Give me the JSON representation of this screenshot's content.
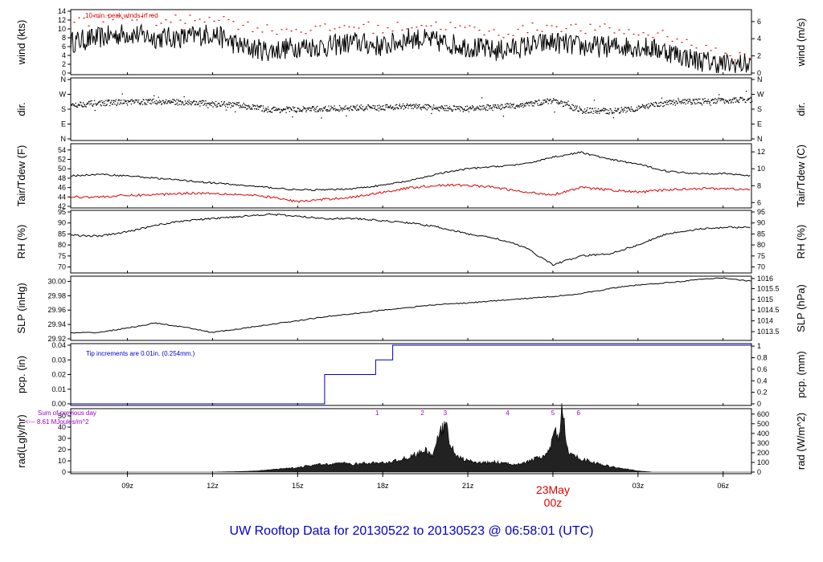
{
  "title": "UW Rooftop Data for 20130522  to  20130523 @ 06:58:01  (UTC)",
  "colors": {
    "axis": "#000000",
    "series": "#000000",
    "dew": "#dd0000",
    "gust": "#dd0000",
    "precip": "#0000cc",
    "day": "#dd0000",
    "annotation_purple": "#9900cc",
    "title": "#0000cc"
  },
  "x_axis": {
    "tick_labels": [
      "09z",
      "12z",
      "15z",
      "18z",
      "21z",
      "00z",
      "03z",
      "06z"
    ],
    "tick_hours": [
      9,
      12,
      15,
      18,
      21,
      24,
      27,
      30
    ],
    "range_hours": [
      7.0,
      31.0
    ],
    "day_label": "23May",
    "day_tick_label": "00z"
  },
  "chart_data": [
    {
      "type": "line",
      "panel": "wind",
      "ylabel_left": "wind (kts)",
      "ylabel_right": "wind (m/s)",
      "left_ticks": [
        "0",
        "2",
        "4",
        "6",
        "8",
        "10",
        "12",
        "14"
      ],
      "left_range": [
        0,
        14
      ],
      "right_ticks": [
        "0",
        "2",
        "4",
        "6"
      ],
      "right_ticks_at_left": [
        0,
        3.89,
        7.78,
        11.66
      ],
      "annotation": "10 min. peak winds in red",
      "x": [
        7,
        8,
        9,
        10,
        11,
        12,
        13,
        14,
        15,
        16,
        17,
        18,
        19,
        20,
        21,
        22,
        23,
        24,
        25,
        26,
        27,
        28,
        29,
        30,
        31
      ],
      "series": [
        {
          "values": [
            7,
            8,
            9,
            8,
            8,
            9,
            6,
            5,
            6,
            6,
            7,
            6,
            8,
            7,
            6,
            5,
            6,
            7,
            6,
            6,
            6,
            5,
            3,
            2,
            2
          ]
        },
        {
          "values": [
            12,
            12,
            13,
            12,
            12,
            13,
            11,
            10,
            10,
            10,
            11,
            10,
            11,
            11,
            10,
            9,
            10,
            11,
            10,
            10,
            9,
            9,
            6,
            4,
            4
          ]
        }
      ]
    },
    {
      "type": "scatter",
      "panel": "dir",
      "ylabel_left": "dir.",
      "ylabel_right": "dir.",
      "left_ticks": [
        "N",
        "E",
        "S",
        "W",
        "N"
      ],
      "right_ticks": [
        "N",
        "E",
        "S",
        "W",
        "N"
      ],
      "range_degrees": [
        0,
        360
      ],
      "x": [
        7,
        8,
        9,
        10,
        11,
        12,
        13,
        14,
        15,
        16,
        17,
        18,
        19,
        20,
        21,
        22,
        23,
        24,
        25,
        26,
        27,
        28,
        29,
        30,
        31
      ],
      "values": [
        210,
        220,
        225,
        228,
        225,
        215,
        205,
        180,
        180,
        185,
        190,
        195,
        200,
        190,
        185,
        195,
        210,
        235,
        175,
        170,
        190,
        220,
        230,
        235,
        240
      ]
    },
    {
      "type": "line",
      "panel": "temp",
      "ylabel_left": "Tair/Tdew (F)",
      "ylabel_right": "Tair/Tdew (C)",
      "left_ticks": [
        "42",
        "44",
        "46",
        "48",
        "50",
        "52",
        "54"
      ],
      "left_range": [
        42,
        55
      ],
      "right_ticks": [
        "6",
        "8",
        "10",
        "12"
      ],
      "right_ticks_at_left": [
        42.8,
        46.4,
        50.0,
        53.6
      ],
      "x": [
        7,
        8,
        9,
        10,
        11,
        12,
        13,
        14,
        15,
        16,
        17,
        18,
        19,
        20,
        21,
        22,
        23,
        24,
        25,
        26,
        27,
        28,
        29,
        30,
        31
      ],
      "series": [
        {
          "values": [
            48.5,
            48.8,
            48.5,
            48.0,
            47.5,
            47.0,
            46.5,
            46.0,
            45.5,
            45.5,
            45.8,
            46.5,
            47.5,
            49.0,
            50.0,
            50.5,
            51.0,
            52.5,
            53.5,
            52.0,
            51.0,
            49.5,
            49.0,
            49.0,
            48.5
          ]
        },
        {
          "values": [
            44,
            44,
            44.3,
            44.5,
            44.8,
            44.8,
            44.5,
            44,
            43,
            43.5,
            44,
            45,
            46,
            46.5,
            46.5,
            46,
            45,
            44.5,
            46,
            45.5,
            45,
            45.5,
            45.8,
            45.8,
            45.5
          ]
        }
      ]
    },
    {
      "type": "line",
      "panel": "rh",
      "ylabel_left": "RH (%)",
      "ylabel_right": "RH (%)",
      "left_ticks": [
        "70",
        "75",
        "80",
        "85",
        "90",
        "95"
      ],
      "left_range": [
        68,
        95
      ],
      "right_ticks": [
        "70",
        "75",
        "80",
        "85",
        "90",
        "95"
      ],
      "right_ticks_at_left": [
        70,
        75,
        80,
        85,
        90,
        95
      ],
      "x": [
        7,
        8,
        9,
        10,
        11,
        12,
        13,
        14,
        15,
        16,
        17,
        18,
        19,
        20,
        21,
        22,
        23,
        24,
        25,
        26,
        27,
        28,
        29,
        30,
        31
      ],
      "values": [
        84.5,
        84,
        86,
        89,
        91,
        92,
        93,
        94,
        93,
        92,
        92,
        91,
        90,
        88,
        85,
        83,
        79,
        71,
        75,
        76,
        80,
        85,
        87,
        88,
        88
      ]
    },
    {
      "type": "line",
      "panel": "slp",
      "ylabel_left": "SLP (inHg)",
      "ylabel_right": "SLP (hPa)",
      "left_ticks": [
        "29.92",
        "29.94",
        "29.96",
        "29.98",
        "30.00"
      ],
      "left_range": [
        29.92,
        30.005
      ],
      "right_ticks": [
        "1013.5",
        "1014",
        "1014.5",
        "1015",
        "1015.5",
        "1016"
      ],
      "right_ticks_at_left": [
        29.93,
        29.945,
        29.96,
        29.975,
        29.99,
        30.004
      ],
      "x": [
        7,
        8,
        9,
        10,
        11,
        12,
        13,
        14,
        15,
        16,
        17,
        18,
        19,
        20,
        21,
        22,
        23,
        24,
        25,
        26,
        27,
        28,
        29,
        30,
        31
      ],
      "values": [
        29.928,
        29.929,
        29.935,
        29.942,
        29.936,
        29.929,
        29.934,
        29.94,
        29.945,
        29.951,
        29.955,
        29.96,
        29.964,
        29.968,
        29.97,
        29.973,
        29.976,
        29.979,
        29.983,
        29.99,
        29.995,
        29.998,
        30.002,
        30.005,
        30.0
      ]
    },
    {
      "type": "line",
      "panel": "pcp",
      "ylabel_left": "pcp. (in)",
      "ylabel_right": "pcp. (mm)",
      "left_ticks": [
        "0.00",
        "0.01",
        "0.02",
        "0.03",
        "0.04"
      ],
      "left_range": [
        0,
        0.04
      ],
      "right_ticks": [
        "0",
        "0.2",
        "0.4",
        "0.6",
        "0.8",
        "1"
      ],
      "right_ticks_at_left": [
        0,
        0.00787,
        0.01575,
        0.02362,
        0.0315,
        0.03937
      ],
      "annotation": "Tip increments are 0.01in. (0.254mm.)",
      "x": [
        7,
        15.95,
        15.95,
        17.75,
        17.75,
        18.35,
        18.35,
        31
      ],
      "values": [
        0,
        0,
        0.02,
        0.02,
        0.03,
        0.03,
        0.04,
        0.04
      ]
    },
    {
      "type": "area",
      "panel": "rad",
      "ylabel_left": "rad(Lgly/hr)",
      "ylabel_right": "rad (W/m^2)",
      "left_ticks": [
        "0",
        "10",
        "20",
        "30",
        "40",
        "50"
      ],
      "left_range": [
        0,
        55
      ],
      "right_ticks": [
        "0",
        "100",
        "200",
        "300",
        "400",
        "500",
        "600"
      ],
      "right_ticks_at_left": [
        0,
        8.6,
        17.2,
        25.8,
        34.4,
        43.0,
        51.6
      ],
      "annotation_line1": "Sum of previous day",
      "annotation_line2": "<--- 8.61 MJoules/m^2",
      "markers": [
        {
          "label": "1",
          "x": 17.8
        },
        {
          "label": "2",
          "x": 19.4
        },
        {
          "label": "3",
          "x": 20.2
        },
        {
          "label": "4",
          "x": 22.4
        },
        {
          "label": "5",
          "x": 24.0
        },
        {
          "label": "6",
          "x": 24.9
        }
      ],
      "x": [
        7,
        12,
        13,
        13.5,
        14,
        14.5,
        15,
        15.5,
        16,
        16.5,
        17,
        17.5,
        18,
        18.5,
        19,
        19.5,
        19.75,
        20,
        20.2,
        20.4,
        20.6,
        21,
        21.5,
        22,
        22.5,
        23,
        23.5,
        23.8,
        24.0,
        24.1,
        24.2,
        24.3,
        24.4,
        24.5,
        24.7,
        25,
        25.5,
        26,
        26.5,
        27,
        27.5,
        31
      ],
      "values": [
        0,
        0,
        0.5,
        1,
        2,
        3,
        4,
        6,
        7,
        8,
        7,
        8,
        8,
        10,
        14,
        19,
        15,
        33,
        43,
        25,
        14,
        10,
        8,
        9,
        7,
        8,
        13,
        15,
        28,
        37,
        25,
        55,
        45,
        20,
        14,
        12,
        8,
        5,
        3,
        1,
        0,
        0
      ]
    }
  ]
}
